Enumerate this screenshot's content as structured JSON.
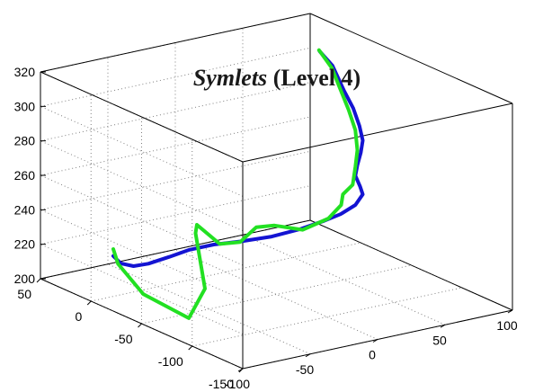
{
  "chart_data": {
    "type": "line",
    "projection": "3d",
    "title_italic": "Symlets",
    "title_rest": " (Level 4)",
    "xlabel": "",
    "ylabel": "",
    "zlabel": "",
    "grid": true,
    "xlim": [
      -100,
      100
    ],
    "ylim": [
      -150,
      50
    ],
    "zlim": [
      200,
      320
    ],
    "x_ticks": [
      -100,
      -50,
      0,
      50,
      100
    ],
    "y_ticks": [
      -150,
      -100,
      -50,
      0,
      50
    ],
    "z_ticks": [
      200,
      220,
      240,
      260,
      280,
      300,
      320
    ],
    "colors": {
      "series_blue": "#1414d2",
      "series_green": "#22e022",
      "grid": "#808080",
      "axes": "#000000"
    },
    "series": [
      {
        "color": "#1414d2",
        "points": [
          [
            -100,
            -22,
            232
          ],
          [
            -93,
            -20,
            226
          ],
          [
            -82,
            -18,
            222
          ],
          [
            -68,
            -14,
            220
          ],
          [
            -48,
            -8,
            219
          ],
          [
            -30,
            -4,
            219
          ],
          [
            -12,
            -4,
            219
          ],
          [
            5,
            -8,
            219
          ],
          [
            22,
            -16,
            221
          ],
          [
            38,
            -22,
            224
          ],
          [
            54,
            -25,
            227
          ],
          [
            64,
            -28,
            230
          ],
          [
            72,
            -32,
            235
          ],
          [
            76,
            -34,
            241
          ],
          [
            74,
            -34,
            246
          ],
          [
            72,
            -32,
            252
          ],
          [
            75,
            -30,
            257
          ],
          [
            85,
            -20,
            260
          ],
          [
            94,
            -10,
            263
          ],
          [
            99,
            0,
            268
          ],
          [
            102,
            10,
            275
          ],
          [
            104,
            22,
            282
          ],
          [
            103,
            32,
            294
          ],
          [
            101,
            42,
            300
          ]
        ]
      },
      {
        "color": "#22e022",
        "points": [
          [
            -100,
            -22,
            236
          ],
          [
            -95,
            -20,
            226
          ],
          [
            -95,
            -45,
            215
          ],
          [
            -80,
            -70,
            205
          ],
          [
            -62,
            -62,
            217
          ],
          [
            -45,
            -30,
            238
          ],
          [
            -35,
            -18,
            238
          ],
          [
            -18,
            -18,
            224
          ],
          [
            0,
            -14,
            221
          ],
          [
            15,
            -10,
            226
          ],
          [
            30,
            -8,
            224
          ],
          [
            45,
            -16,
            221
          ],
          [
            55,
            -28,
            229
          ],
          [
            63,
            -30,
            236
          ],
          [
            68,
            -25,
            240
          ],
          [
            76,
            -24,
            244
          ],
          [
            84,
            -16,
            251
          ],
          [
            90,
            -10,
            258
          ],
          [
            96,
            0,
            266
          ],
          [
            100,
            12,
            274
          ],
          [
            103,
            24,
            282
          ],
          [
            104,
            34,
            292
          ],
          [
            102,
            44,
            300
          ]
        ]
      }
    ]
  }
}
